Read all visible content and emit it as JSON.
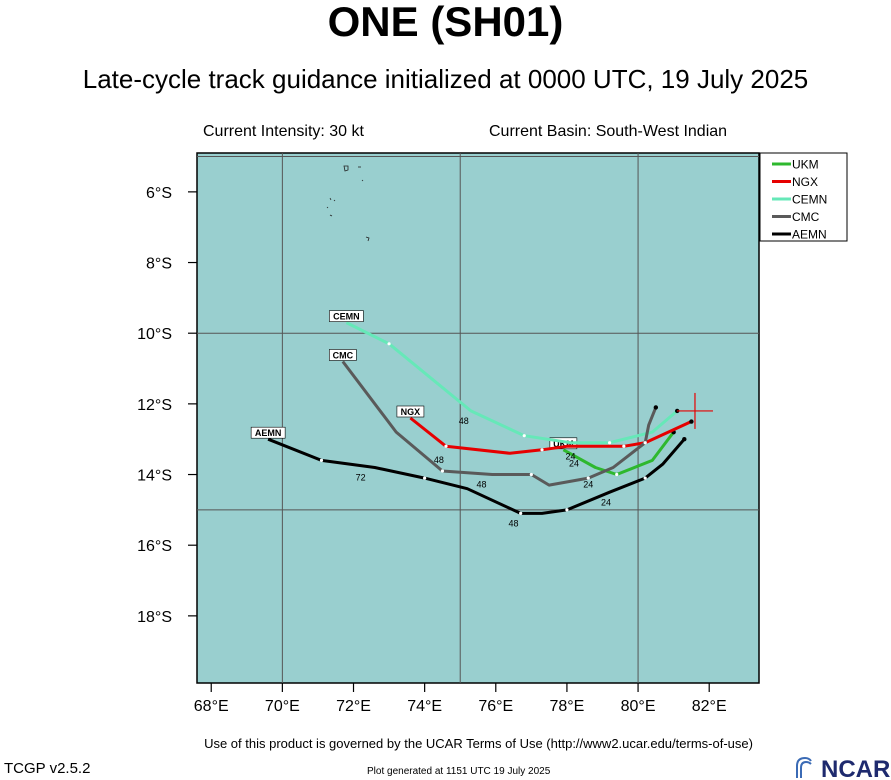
{
  "header": {
    "title": "ONE (SH01)",
    "subtitle": "Late-cycle track guidance initialized at 0000 UTC, 19 July 2025",
    "intensity": "Current Intensity: 30 kt",
    "basin": "Current Basin: South-West Indian"
  },
  "footer": {
    "terms": "Use of this product is governed by the UCAR Terms of Use (http://www2.ucar.edu/terms-of-use)",
    "version": "TCGP v2.5.2",
    "generated": "Plot generated at 1151 UTC   19 July 2025",
    "logo_text": "NCAR"
  },
  "colors": {
    "ocean": "#99cfcf",
    "grid": "#555555",
    "ukm": "#2eb82e",
    "ngx": "#e60000",
    "cemn": "#66e8b8",
    "cmc": "#5a5a5a",
    "aemn": "#000000",
    "current_position": "#e60000"
  },
  "map": {
    "lon_ticks": [
      "68°E",
      "70°E",
      "72°E",
      "74°E",
      "76°E",
      "78°E",
      "80°E",
      "82°E"
    ],
    "lat_ticks": [
      "6°S",
      "8°S",
      "10°S",
      "12°S",
      "14°S",
      "16°S",
      "18°S"
    ],
    "current_position": {
      "lon": 81.6,
      "lat": -12.2
    }
  },
  "legend": [
    "UKM",
    "NGX",
    "CEMN",
    "CMC",
    "AEMN"
  ],
  "chart_data": {
    "type": "line",
    "title": "ONE (SH01)",
    "xlabel": "",
    "ylabel": "",
    "xlim": [
      67.6,
      83.4
    ],
    "ylim": [
      -19.9,
      -4.9
    ],
    "series": [
      {
        "name": "UKM",
        "color_key": "ukm",
        "start_label": "UKM",
        "points": [
          [
            81.0,
            -12.8
          ],
          [
            80.4,
            -13.6
          ],
          [
            79.4,
            -14.0
          ],
          [
            78.8,
            -13.8
          ],
          [
            77.9,
            -13.3
          ]
        ],
        "hour_labels": [
          {
            "text": "24",
            "lon": 78.2,
            "lat": -13.6
          }
        ]
      },
      {
        "name": "NGX",
        "color_key": "ngx",
        "start_label": "NGX",
        "points": [
          [
            81.5,
            -12.5
          ],
          [
            80.2,
            -13.1
          ],
          [
            79.6,
            -13.2
          ],
          [
            78.0,
            -13.2
          ],
          [
            77.3,
            -13.3
          ],
          [
            76.4,
            -13.4
          ],
          [
            74.6,
            -13.2
          ],
          [
            73.6,
            -12.4
          ]
        ],
        "hour_labels": [
          {
            "text": "24",
            "lon": 78.1,
            "lat": -13.4
          },
          {
            "text": "48",
            "lon": 74.4,
            "lat": -13.5
          }
        ]
      },
      {
        "name": "CEMN",
        "color_key": "cemn",
        "start_label": "CEMN",
        "points": [
          [
            81.1,
            -12.2
          ],
          [
            80.4,
            -12.8
          ],
          [
            79.2,
            -13.1
          ],
          [
            78.1,
            -13.1
          ],
          [
            76.8,
            -12.9
          ],
          [
            75.3,
            -12.2
          ],
          [
            73.0,
            -10.3
          ],
          [
            71.8,
            -9.7
          ]
        ],
        "hour_labels": [
          {
            "text": "48",
            "lon": 75.1,
            "lat": -12.4
          }
        ]
      },
      {
        "name": "CMC",
        "color_key": "cmc",
        "start_label": "CMC",
        "points": [
          [
            80.5,
            -12.1
          ],
          [
            80.3,
            -12.6
          ],
          [
            80.2,
            -13.1
          ],
          [
            79.3,
            -13.8
          ],
          [
            78.6,
            -14.1
          ],
          [
            77.5,
            -14.3
          ],
          [
            77.0,
            -14.0
          ],
          [
            75.9,
            -14.0
          ],
          [
            74.5,
            -13.9
          ],
          [
            73.2,
            -12.8
          ],
          [
            71.7,
            -10.8
          ]
        ],
        "hour_labels": [
          {
            "text": "24",
            "lon": 78.6,
            "lat": -14.2
          },
          {
            "text": "48",
            "lon": 75.6,
            "lat": -14.2
          }
        ]
      },
      {
        "name": "AEMN",
        "color_key": "aemn",
        "start_label": "AEMN",
        "points": [
          [
            81.3,
            -13.0
          ],
          [
            80.7,
            -13.7
          ],
          [
            80.2,
            -14.1
          ],
          [
            79.2,
            -14.5
          ],
          [
            78.0,
            -15.0
          ],
          [
            77.3,
            -15.1
          ],
          [
            76.7,
            -15.1
          ],
          [
            75.2,
            -14.4
          ],
          [
            74.0,
            -14.1
          ],
          [
            72.6,
            -13.8
          ],
          [
            71.1,
            -13.6
          ],
          [
            69.6,
            -13.0
          ]
        ],
        "hour_labels": [
          {
            "text": "24",
            "lon": 79.1,
            "lat": -14.7
          },
          {
            "text": "48",
            "lon": 76.5,
            "lat": -15.3
          },
          {
            "text": "72",
            "lon": 72.2,
            "lat": -14.0
          }
        ]
      }
    ]
  }
}
